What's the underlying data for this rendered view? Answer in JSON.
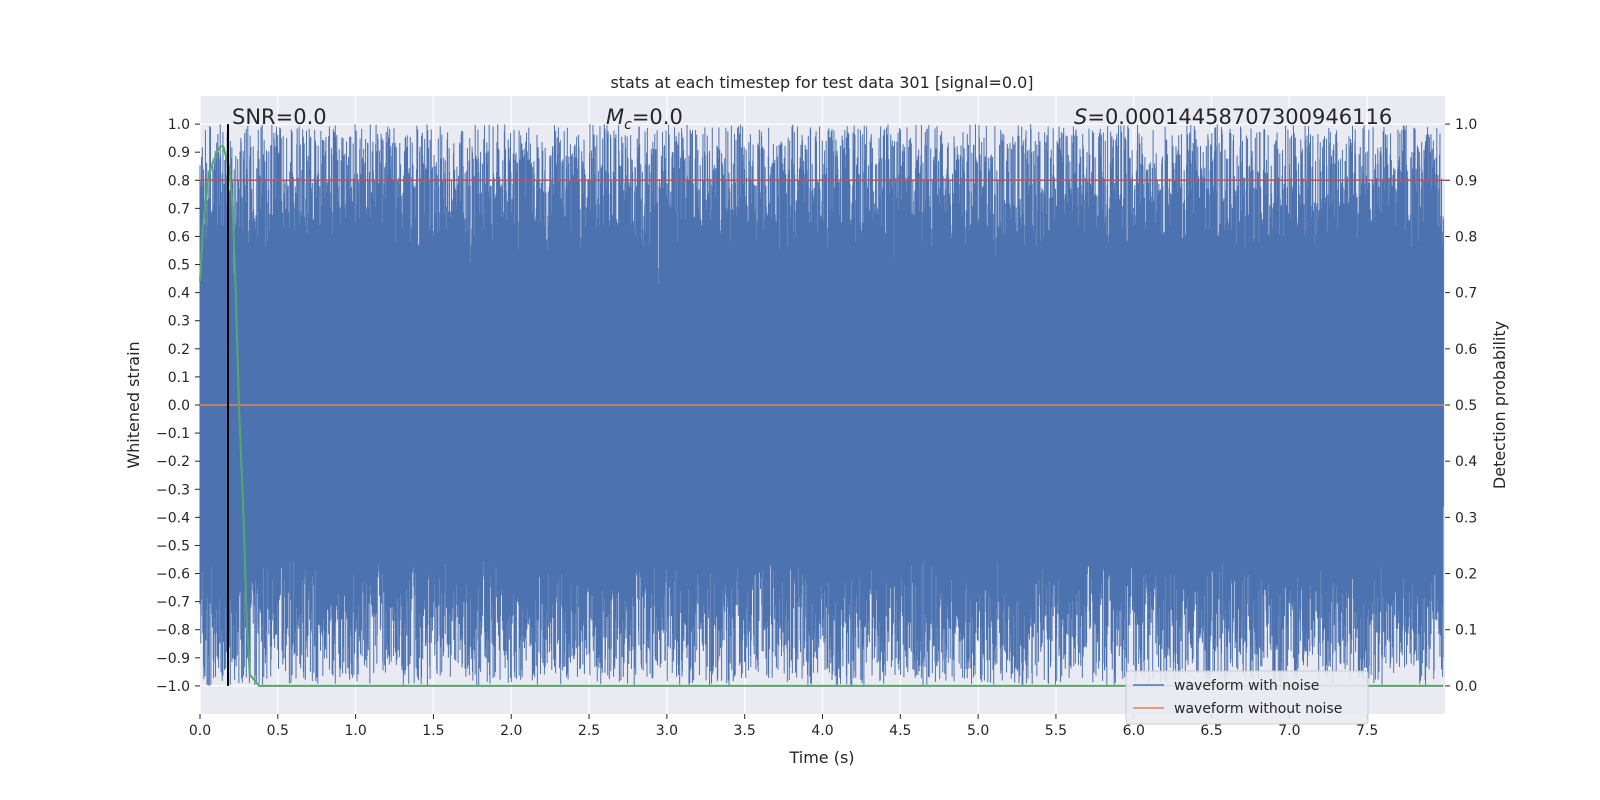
{
  "chart_data": {
    "type": "line",
    "title": "stats at each timestep for test data 301 [signal=0.0]",
    "xlabel": "Time (s)",
    "ylabel": "Whitened strain",
    "y2label": "Detection probability",
    "xlim": [
      0.0,
      8.0
    ],
    "ylim": [
      -1.1,
      1.1
    ],
    "y2lim": [
      -0.05,
      1.05
    ],
    "x_ticks": [
      0.0,
      0.5,
      1.0,
      1.5,
      2.0,
      2.5,
      3.0,
      3.5,
      4.0,
      4.5,
      5.0,
      5.5,
      6.0,
      6.5,
      7.0,
      7.5
    ],
    "y_ticks": [
      1.0,
      0.9,
      0.8,
      0.7,
      0.6,
      0.5,
      0.4,
      0.3,
      0.2,
      0.1,
      0.0,
      -0.1,
      -0.2,
      -0.3,
      -0.4,
      -0.5,
      -0.6,
      -0.7,
      -0.8,
      -0.9,
      -1.0
    ],
    "y2_ticks": [
      1.0,
      0.9,
      0.8,
      0.7,
      0.6,
      0.5,
      0.4,
      0.3,
      0.2,
      0.1,
      0.0
    ],
    "grid": true,
    "legend_position": "lower-right",
    "annotations": {
      "snr": "SNR=0.0",
      "mc_symbol": "M",
      "mc_sub": "c",
      "mc_rest": "=0.0",
      "s_symbol": "S",
      "s_rest": "=0.00014458707300946116"
    },
    "series": [
      {
        "name": "waveform with noise",
        "color": "#4c72b0",
        "description": "normalized noisy strain spanning roughly -1 to 1 across the full window"
      },
      {
        "name": "waveform without noise",
        "color": "#dd8452",
        "x": [
          0.0,
          7.99
        ],
        "y": [
          0.0,
          0.0
        ]
      },
      {
        "color": "#55a868",
        "axis": "right",
        "x": [
          0.0,
          0.02,
          0.05,
          0.08,
          0.11,
          0.13,
          0.15,
          0.17,
          0.19,
          0.21,
          0.23,
          0.25,
          0.28,
          0.3,
          0.32,
          0.35,
          0.38,
          0.5,
          1.0,
          2.0,
          4.0,
          6.0,
          7.99
        ],
        "y": [
          0.72,
          0.82,
          0.9,
          0.93,
          0.95,
          0.96,
          0.96,
          0.94,
          0.92,
          0.85,
          0.7,
          0.5,
          0.3,
          0.12,
          0.02,
          0.01,
          0.0,
          0.0,
          0.0,
          0.0,
          0.0,
          0.0,
          0.0
        ]
      }
    ],
    "threshold_line": {
      "axis": "right",
      "y": 0.9,
      "color": "#c44e52"
    },
    "marker_line": {
      "x": 0.18,
      "color": "#000000"
    }
  }
}
